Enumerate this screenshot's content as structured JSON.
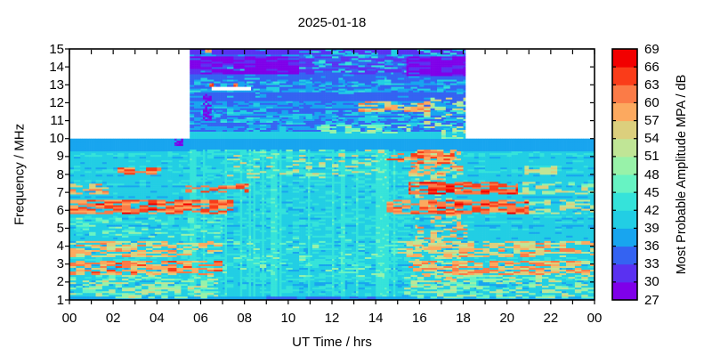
{
  "chart_data": {
    "type": "heatmap",
    "title": "2025-01-18",
    "xlabel": "UT Time / hrs",
    "ylabel": "Frequency / MHz",
    "x_axis": {
      "range": [
        0,
        24
      ],
      "minor_tick_every_hours": 1,
      "label_hours": [
        0,
        2,
        4,
        6,
        8,
        10,
        12,
        14,
        16,
        18,
        20,
        22,
        24
      ],
      "label_texts": [
        "00",
        "02",
        "04",
        "06",
        "08",
        "10",
        "12",
        "14",
        "16",
        "18",
        "20",
        "22",
        "00"
      ]
    },
    "y_axis": {
      "range": [
        1,
        15
      ],
      "tick_values": [
        1,
        2,
        3,
        4,
        5,
        6,
        7,
        8,
        9,
        10,
        11,
        12,
        13,
        14,
        15
      ],
      "tick_texts": [
        "1",
        "2",
        "3",
        "4",
        "5",
        "6",
        "7",
        "8",
        "9",
        "10",
        "11",
        "12",
        "13",
        "14",
        "15"
      ]
    },
    "colorbar": {
      "label": "Most Probable Amplitude MPA / dB",
      "min": 27,
      "max": 69,
      "step": 3,
      "tick_values": [
        27,
        30,
        33,
        36,
        39,
        42,
        45,
        48,
        51,
        54,
        57,
        60,
        63,
        66,
        69
      ],
      "tick_texts": [
        "27",
        "30",
        "33",
        "36",
        "39",
        "42",
        "45",
        "48",
        "51",
        "54",
        "57",
        "60",
        "63",
        "66",
        "69"
      ],
      "band_colors": [
        "#7f00e9",
        "#5a31f1",
        "#3463f2",
        "#18a5ef",
        "#22cee4",
        "#35e3da",
        "#67f3c3",
        "#98f2a9",
        "#c0e596",
        "#dccf7d",
        "#fca95f",
        "#fb7b47",
        "#fa3c19",
        "#f20000"
      ]
    },
    "frame_color": "#000000",
    "no_data_color": "#ffffff",
    "grid": {
      "nt": 240,
      "nf": 140
    },
    "coverage": [
      {
        "t": [
          0,
          24
        ],
        "f": [
          1,
          10
        ]
      },
      {
        "t": [
          5.5,
          18.1
        ],
        "f": [
          10,
          15
        ]
      }
    ],
    "base_levels": [
      {
        "f": [
          1,
          10
        ],
        "db": 40.5
      },
      {
        "f": [
          10,
          15
        ],
        "db": 35.5
      }
    ],
    "features": [
      {
        "name": "blue-band-9.5",
        "f": [
          9.35,
          10
        ],
        "t": [
          0,
          24
        ],
        "db": 37.5,
        "op": "set",
        "p": 1,
        "spread": 2.5,
        "corr": 0.5
      },
      {
        "name": "bottom-blue-line",
        "f": [
          1,
          1.15
        ],
        "t": [
          0,
          24
        ],
        "db": 37,
        "op": "set",
        "p": 1,
        "spread": 2,
        "corr": 0.4
      },
      {
        "name": "bottom-blue-strong",
        "f": [
          1,
          1.2
        ],
        "t": [
          9,
          14
        ],
        "db": 35.5,
        "op": "set",
        "p": 0.9,
        "spread": 2,
        "corr": 0.4
      },
      {
        "name": "midday-texture",
        "f": [
          1.2,
          9.35
        ],
        "t": [
          5,
          15.8
        ],
        "db": 43.5,
        "op": "max",
        "p": 0.22,
        "spread": 3,
        "corr": 0.3
      },
      {
        "name": "midday-vertical-stripes",
        "f": [
          1.2,
          9.35
        ],
        "t": [
          5.5,
          15.5
        ],
        "db": 44,
        "op": "max",
        "p": 0.25,
        "spread": 2.5,
        "corr": 0.12,
        "mode": "col"
      },
      {
        "name": "midday-green-speckle",
        "f": [
          2.2,
          4.6
        ],
        "t": [
          7,
          15
        ],
        "db": 47,
        "op": "max",
        "p": 0.12,
        "spread": 5,
        "corr": 0.3
      },
      {
        "name": "speckle-low-early",
        "f": [
          1.1,
          2.35
        ],
        "t": [
          0,
          6.8
        ],
        "db": 50,
        "op": "max",
        "p": 0.45,
        "spread": 9,
        "corr": 0.3
      },
      {
        "name": "speckle-low-evening",
        "f": [
          1.1,
          2.35
        ],
        "t": [
          15.3,
          24
        ],
        "db": 50,
        "op": "max",
        "p": 0.45,
        "spread": 9,
        "corr": 0.3
      },
      {
        "name": "band-2.8-early",
        "f": [
          2.4,
          3.2
        ],
        "t": [
          0,
          7
        ],
        "db": 59,
        "op": "max",
        "p": 0.7,
        "spread": 10,
        "corr": 0.35
      },
      {
        "name": "band-2.8-evening",
        "f": [
          2.4,
          3.2
        ],
        "t": [
          15.5,
          24
        ],
        "db": 58,
        "op": "max",
        "p": 0.65,
        "spread": 10,
        "corr": 0.35
      },
      {
        "name": "band-3.8-early",
        "f": [
          3.4,
          4.3
        ],
        "t": [
          0,
          7
        ],
        "db": 56,
        "op": "max",
        "p": 0.6,
        "spread": 9,
        "corr": 0.35
      },
      {
        "name": "band-3.8-evening",
        "f": [
          3.4,
          4.3
        ],
        "t": [
          15,
          24
        ],
        "db": 56,
        "op": "max",
        "p": 0.6,
        "spread": 9,
        "corr": 0.35
      },
      {
        "name": "band-5-early-speckle",
        "f": [
          4.5,
          5.6
        ],
        "t": [
          0,
          7
        ],
        "db": 46,
        "op": "max",
        "p": 0.3,
        "spread": 6,
        "corr": 0.3
      },
      {
        "name": "band-6.2-early",
        "f": [
          5.8,
          6.6
        ],
        "t": [
          0,
          7.5
        ],
        "db": 62,
        "op": "max",
        "p": 0.7,
        "spread": 9,
        "corr": 0.4
      },
      {
        "name": "band-6.2-evening",
        "f": [
          5.8,
          6.6
        ],
        "t": [
          14.5,
          21
        ],
        "db": 62,
        "op": "max",
        "p": 0.7,
        "spread": 9,
        "corr": 0.4
      },
      {
        "name": "band-6.2-night",
        "f": [
          5.8,
          6.6
        ],
        "t": [
          21,
          24
        ],
        "db": 54,
        "op": "max",
        "p": 0.5,
        "spread": 8,
        "corr": 0.35
      },
      {
        "name": "band-7.2-night0",
        "f": [
          6.9,
          7.5
        ],
        "t": [
          0,
          1.8
        ],
        "db": 57,
        "op": "max",
        "p": 0.5,
        "spread": 8,
        "corr": 0.3
      },
      {
        "name": "band-7.2-morning",
        "f": [
          7.0,
          7.45
        ],
        "t": [
          5.3,
          8.2
        ],
        "db": 62,
        "op": "max",
        "p": 0.6,
        "spread": 7,
        "corr": 0.4
      },
      {
        "name": "band-7.2-evening",
        "f": [
          6.9,
          7.6
        ],
        "t": [
          15.5,
          20.5
        ],
        "db": 64,
        "op": "max",
        "p": 0.75,
        "spread": 8,
        "corr": 0.4
      },
      {
        "name": "band-7.2-late",
        "f": [
          6.9,
          7.6
        ],
        "t": [
          20.5,
          24
        ],
        "db": 52,
        "op": "max",
        "p": 0.4,
        "spread": 9,
        "corr": 0.3
      },
      {
        "name": "line-8.2-early",
        "f": [
          8.05,
          8.35
        ],
        "t": [
          2.2,
          4.2
        ],
        "db": 61,
        "op": "max",
        "p": 0.55,
        "spread": 7,
        "corr": 0.5
      },
      {
        "name": "speckle-8-9-day",
        "f": [
          7.8,
          9.35
        ],
        "t": [
          7,
          14.5
        ],
        "db": 52,
        "op": "max",
        "p": 0.22,
        "spread": 10,
        "corr": 0.3
      },
      {
        "name": "band-9-afternoon",
        "f": [
          8.6,
          9.35
        ],
        "t": [
          14.5,
          17.6
        ],
        "db": 61,
        "op": "max",
        "p": 0.55,
        "spread": 9,
        "corr": 0.3
      },
      {
        "name": "band-8-afternoon",
        "f": [
          7.7,
          8.5
        ],
        "t": [
          15.5,
          18
        ],
        "db": 57,
        "op": "max",
        "p": 0.5,
        "spread": 9,
        "corr": 0.3
      },
      {
        "name": "khaki-blob-8.3",
        "f": [
          8.05,
          8.5
        ],
        "t": [
          20.8,
          22.3
        ],
        "db": 53,
        "op": "max",
        "p": 0.75,
        "spread": 4,
        "corr": 0.5
      },
      {
        "name": "afternoon-activity",
        "f": [
          2,
          9.35
        ],
        "t": [
          15.8,
          17.9
        ],
        "db": 54,
        "op": "max",
        "p": 0.28,
        "spread": 11,
        "corr": 0.25
      },
      {
        "name": "band-4.8-afternoon",
        "f": [
          4.4,
          5.2
        ],
        "t": [
          15.8,
          18.2
        ],
        "db": 57,
        "op": "max",
        "p": 0.45,
        "spread": 9,
        "corr": 0.3
      },
      {
        "name": "purple-blob-05",
        "f": [
          9.6,
          10
        ],
        "t": [
          4.85,
          5.15
        ],
        "db": 29.5,
        "op": "set",
        "p": 0.9,
        "spread": 2,
        "corr": 0.1
      },
      {
        "name": "upper-cyan-bottom",
        "f": [
          10,
          10.35
        ],
        "t": [
          5.5,
          18.1
        ],
        "db": 41,
        "op": "set",
        "p": 1,
        "spread": 2,
        "corr": 0.4
      },
      {
        "name": "upper-speckle-all",
        "f": [
          10.35,
          15
        ],
        "t": [
          5.5,
          18.1
        ],
        "db": 40,
        "op": "max",
        "p": 0.1,
        "spread": 4,
        "corr": 0.3
      },
      {
        "name": "upper-cyan-rows-11",
        "f": [
          10.8,
          11.6
        ],
        "t": [
          5.5,
          18.1
        ],
        "db": 40.5,
        "op": "max",
        "p": 0.3,
        "spread": 4,
        "corr": 0.3
      },
      {
        "name": "upper-cyan-rows-13",
        "f": [
          12.55,
          13.35
        ],
        "t": [
          5.5,
          18.1
        ],
        "db": 40,
        "op": "max",
        "p": 0.3,
        "spread": 4.5,
        "corr": 0.3
      },
      {
        "name": "blue-row-12.3",
        "f": [
          12.1,
          12.55
        ],
        "t": [
          5.5,
          18.1
        ],
        "db": 34,
        "op": "set",
        "p": 0.85,
        "spread": 2,
        "corr": 0.5
      },
      {
        "name": "blue-row-13.3",
        "f": [
          13.35,
          13.6
        ],
        "t": [
          5.5,
          18.1
        ],
        "db": 35,
        "op": "set",
        "p": 0.8,
        "spread": 2,
        "corr": 0.5
      },
      {
        "name": "purple-band-morning",
        "f": [
          13.6,
          14.6
        ],
        "t": [
          5.5,
          10.5
        ],
        "db": 29.5,
        "op": "set",
        "p": 0.92,
        "spread": 2.5,
        "corr": 0.5
      },
      {
        "name": "purple-band-evening",
        "f": [
          13.5,
          14.55
        ],
        "t": [
          15.4,
          18.1
        ],
        "db": 29.5,
        "op": "set",
        "p": 0.92,
        "spread": 2.5,
        "corr": 0.5
      },
      {
        "name": "purple-band-midday",
        "f": [
          13.6,
          14.6
        ],
        "t": [
          10.5,
          15.4
        ],
        "db": 32.5,
        "op": "set",
        "p": 0.75,
        "spread": 3,
        "corr": 0.4
      },
      {
        "name": "cyan-speckle-14-midday",
        "f": [
          13.7,
          14.6
        ],
        "t": [
          10.5,
          15.4
        ],
        "db": 42,
        "op": "max",
        "p": 0.22,
        "spread": 4,
        "corr": 0.3
      },
      {
        "name": "top-row-15",
        "f": [
          14.75,
          15
        ],
        "t": [
          5.5,
          18.1
        ],
        "db": 31.5,
        "op": "set",
        "p": 0.85,
        "spread": 2.5,
        "corr": 0.5
      },
      {
        "name": "top-row-15-speckle",
        "f": [
          14.6,
          15
        ],
        "t": [
          11,
          18.1
        ],
        "db": 41.5,
        "op": "max",
        "p": 0.3,
        "spread": 5,
        "corr": 0.3
      },
      {
        "name": "khaki-row-10.5",
        "f": [
          10.35,
          10.8
        ],
        "t": [
          11.3,
          15.6
        ],
        "db": 49,
        "op": "max",
        "p": 0.5,
        "spread": 7,
        "corr": 0.35
      },
      {
        "name": "orange-blob-11.8",
        "f": [
          11.55,
          12.1
        ],
        "t": [
          13.2,
          16.6
        ],
        "db": 57,
        "op": "max",
        "p": 0.55,
        "spread": 10,
        "corr": 0.3
      },
      {
        "name": "orange-speckle-end",
        "f": [
          10,
          12.3
        ],
        "t": [
          16.2,
          18.1
        ],
        "db": 51,
        "op": "max",
        "p": 0.3,
        "spread": 9,
        "corr": 0.25
      },
      {
        "name": "purple-stripe-0615",
        "f": [
          11.0,
          12.45
        ],
        "t": [
          6.15,
          6.45
        ],
        "db": 29.5,
        "op": "set",
        "p": 0.7,
        "spread": 2,
        "corr": 0.05
      },
      {
        "name": "orange-dot-15mhz",
        "f": [
          14.85,
          15
        ],
        "t": [
          6.25,
          6.45
        ],
        "db": 60,
        "op": "max",
        "p": 1,
        "spread": 2,
        "corr": 0.1
      },
      {
        "name": "gap-12.8",
        "f": [
          12.72,
          12.9
        ],
        "t": [
          6.5,
          8.25
        ],
        "op": "gap",
        "p": 1
      },
      {
        "name": "red-dot-12.9-a",
        "f": [
          12.9,
          13.05
        ],
        "t": [
          6.45,
          6.62
        ],
        "db": 63,
        "op": "max",
        "p": 1,
        "spread": 2,
        "corr": 0.1
      },
      {
        "name": "red-dot-12.9-b",
        "f": [
          12.9,
          13.05
        ],
        "t": [
          7.5,
          7.68
        ],
        "db": 63,
        "op": "max",
        "p": 1,
        "spread": 2,
        "corr": 0.1
      }
    ]
  }
}
